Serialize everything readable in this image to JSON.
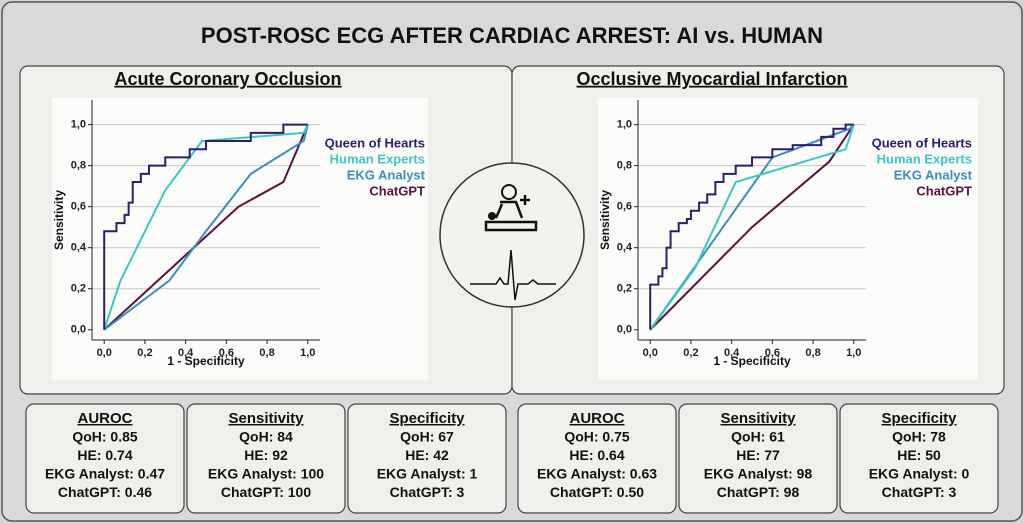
{
  "title": "POST-ROSC ECG AFTER CARDIAC ARREST: AI vs. HUMAN",
  "chart_data": [
    {
      "type": "line",
      "title": "Acute Coronary Occlusion",
      "x_label": "1 - Specificity",
      "y_label": "Sensitivity",
      "xlim": [
        -0.06,
        1.06
      ],
      "ylim": [
        -0.05,
        1.12
      ],
      "grid": true,
      "legend": "top-right",
      "xticks": [
        {
          "value": 0,
          "label": "0,0"
        },
        {
          "value": 0.2,
          "label": "0,2"
        },
        {
          "value": 0.4,
          "label": "0,4"
        },
        {
          "value": 0.6,
          "label": "0,6"
        },
        {
          "value": 0.8,
          "label": "0,8"
        },
        {
          "value": 1,
          "label": "1,0"
        }
      ],
      "yticks": [
        {
          "value": 0,
          "label": "0,0"
        },
        {
          "value": 0.2,
          "label": "0,2"
        },
        {
          "value": 0.4,
          "label": "0,4"
        },
        {
          "value": 0.6,
          "label": "0,6"
        },
        {
          "value": 0.8,
          "label": "0,8"
        },
        {
          "value": 1,
          "label": "1,0"
        }
      ],
      "series": [
        {
          "name": "Queen of Hearts",
          "color": "#2b1f6b",
          "x": [
            0,
            0,
            0.06,
            0.06,
            0.1,
            0.1,
            0.12,
            0.12,
            0.14,
            0.14,
            0.18,
            0.18,
            0.22,
            0.22,
            0.3,
            0.3,
            0.42,
            0.42,
            0.5,
            0.5,
            0.72,
            0.72,
            0.88,
            0.88,
            1
          ],
          "values": [
            0,
            0.48,
            0.48,
            0.52,
            0.52,
            0.56,
            0.56,
            0.62,
            0.62,
            0.72,
            0.72,
            0.76,
            0.76,
            0.8,
            0.8,
            0.84,
            0.84,
            0.88,
            0.88,
            0.92,
            0.92,
            0.96,
            0.96,
            1,
            1
          ]
        },
        {
          "name": "Human Experts",
          "color": "#3cc8c0",
          "x": [
            0,
            0.08,
            0.3,
            0.48,
            0.98,
            1
          ],
          "values": [
            0,
            0.24,
            0.68,
            0.92,
            0.96,
            1
          ]
        },
        {
          "name": "EKG Analyst",
          "color": "#3a8fc0",
          "x": [
            0,
            0.32,
            0.5,
            0.72,
            0.98,
            1
          ],
          "values": [
            0,
            0.24,
            0.48,
            0.76,
            0.92,
            1
          ]
        },
        {
          "name": "ChatGPT",
          "color": "#5a1040",
          "x": [
            0,
            0.66,
            0.88,
            1
          ],
          "values": [
            0,
            0.6,
            0.72,
            1
          ]
        }
      ]
    },
    {
      "type": "line",
      "title": "Occlusive Myocardial Infarction",
      "x_label": "1 - Specificity",
      "y_label": "Sensitivity",
      "xlim": [
        -0.06,
        1.06
      ],
      "ylim": [
        -0.05,
        1.12
      ],
      "grid": true,
      "legend": "top-right",
      "xticks": [
        {
          "value": 0,
          "label": "0,0"
        },
        {
          "value": 0.2,
          "label": "0,2"
        },
        {
          "value": 0.4,
          "label": "0,4"
        },
        {
          "value": 0.6,
          "label": "0,6"
        },
        {
          "value": 0.8,
          "label": "0,8"
        },
        {
          "value": 1,
          "label": "1,0"
        }
      ],
      "yticks": [
        {
          "value": 0,
          "label": "0,0"
        },
        {
          "value": 0.2,
          "label": "0,2"
        },
        {
          "value": 0.4,
          "label": "0,4"
        },
        {
          "value": 0.6,
          "label": "0,6"
        },
        {
          "value": 0.8,
          "label": "0,8"
        },
        {
          "value": 1,
          "label": "1,0"
        }
      ],
      "series": [
        {
          "name": "Queen of Hearts",
          "color": "#2b1f6b",
          "x": [
            0,
            0,
            0.04,
            0.04,
            0.06,
            0.06,
            0.08,
            0.08,
            0.1,
            0.1,
            0.14,
            0.14,
            0.18,
            0.18,
            0.2,
            0.2,
            0.24,
            0.24,
            0.28,
            0.28,
            0.32,
            0.32,
            0.36,
            0.36,
            0.42,
            0.42,
            0.5,
            0.5,
            0.6,
            0.6,
            0.7,
            0.7,
            0.84,
            0.84,
            0.9,
            0.9,
            0.96,
            0.96,
            1
          ],
          "values": [
            0,
            0.22,
            0.22,
            0.26,
            0.26,
            0.3,
            0.3,
            0.4,
            0.4,
            0.48,
            0.48,
            0.52,
            0.52,
            0.54,
            0.54,
            0.58,
            0.58,
            0.62,
            0.62,
            0.66,
            0.66,
            0.72,
            0.72,
            0.76,
            0.76,
            0.8,
            0.8,
            0.84,
            0.84,
            0.88,
            0.88,
            0.9,
            0.9,
            0.94,
            0.94,
            0.98,
            0.98,
            1,
            1
          ]
        },
        {
          "name": "Human Experts",
          "color": "#3cc8c0",
          "x": [
            0,
            0.22,
            0.42,
            0.96,
            1
          ],
          "values": [
            0,
            0.3,
            0.72,
            0.88,
            1
          ]
        },
        {
          "name": "EKG Analyst",
          "color": "#3a8fc0",
          "x": [
            0,
            0.3,
            0.6,
            0.98,
            1
          ],
          "values": [
            0,
            0.42,
            0.84,
            0.98,
            1
          ]
        },
        {
          "name": "ChatGPT",
          "color": "#5a1040",
          "x": [
            0,
            0.5,
            0.88,
            1
          ],
          "values": [
            0,
            0.5,
            0.82,
            1
          ]
        }
      ]
    }
  ],
  "stats": [
    {
      "title": "AUROC",
      "lines": [
        "QoH: 0.85",
        "HE: 0.74",
        "EKG Analyst: 0.47",
        "ChatGPT: 0.46"
      ]
    },
    {
      "title": "Sensitivity",
      "lines": [
        "QoH: 84",
        "HE: 92",
        "EKG Analyst: 100",
        "ChatGPT: 100"
      ]
    },
    {
      "title": "Specificity",
      "lines": [
        "QoH: 67",
        "HE: 42",
        "EKG Analyst: 1",
        "ChatGPT: 3"
      ]
    },
    {
      "title": "AUROC",
      "lines": [
        "QoH: 0.75",
        "HE: 0.64",
        "EKG Analyst: 0.63",
        "ChatGPT: 0.50"
      ]
    },
    {
      "title": "Sensitivity",
      "lines": [
        "QoH: 61",
        "HE: 77",
        "EKG Analyst: 98",
        "ChatGPT: 98"
      ]
    },
    {
      "title": "Specificity",
      "lines": [
        "QoH: 78",
        "HE: 50",
        "EKG Analyst: 0",
        "ChatGPT: 3"
      ]
    }
  ]
}
